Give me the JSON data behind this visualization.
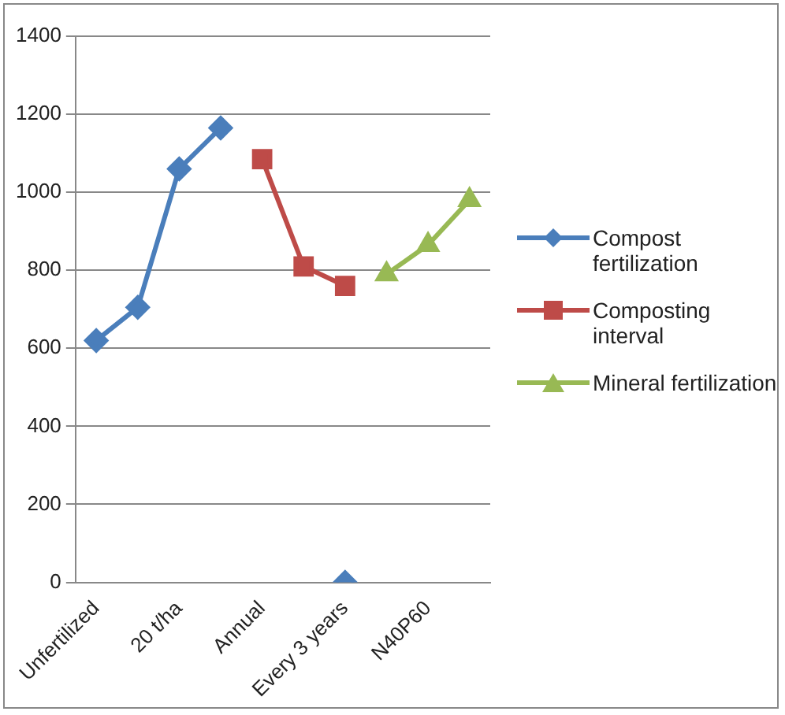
{
  "chart_data": {
    "type": "line",
    "categories": [
      "Unfertilized",
      null,
      "20 t/ha",
      null,
      "Annual",
      null,
      "Every 3 years",
      null,
      "N40P60",
      null
    ],
    "series": [
      {
        "name": "Compost fertilization",
        "color": "#4a7ebb",
        "marker": "diamond",
        "values": [
          620,
          705,
          1060,
          1165,
          null,
          null,
          0,
          null,
          null,
          null
        ]
      },
      {
        "name": "Composting interval",
        "color": "#be4b48",
        "marker": "square",
        "values": [
          null,
          null,
          null,
          null,
          1085,
          810,
          760,
          null,
          null,
          null
        ]
      },
      {
        "name": "Mineral fertilization",
        "color": "#98b954",
        "marker": "triangle",
        "values": [
          null,
          null,
          null,
          null,
          null,
          null,
          null,
          790,
          865,
          980
        ]
      }
    ],
    "ylim": [
      0,
      1400
    ],
    "yticks": [
      0,
      200,
      400,
      600,
      800,
      1000,
      1200,
      1400
    ],
    "grid": "y",
    "legend": "right"
  }
}
